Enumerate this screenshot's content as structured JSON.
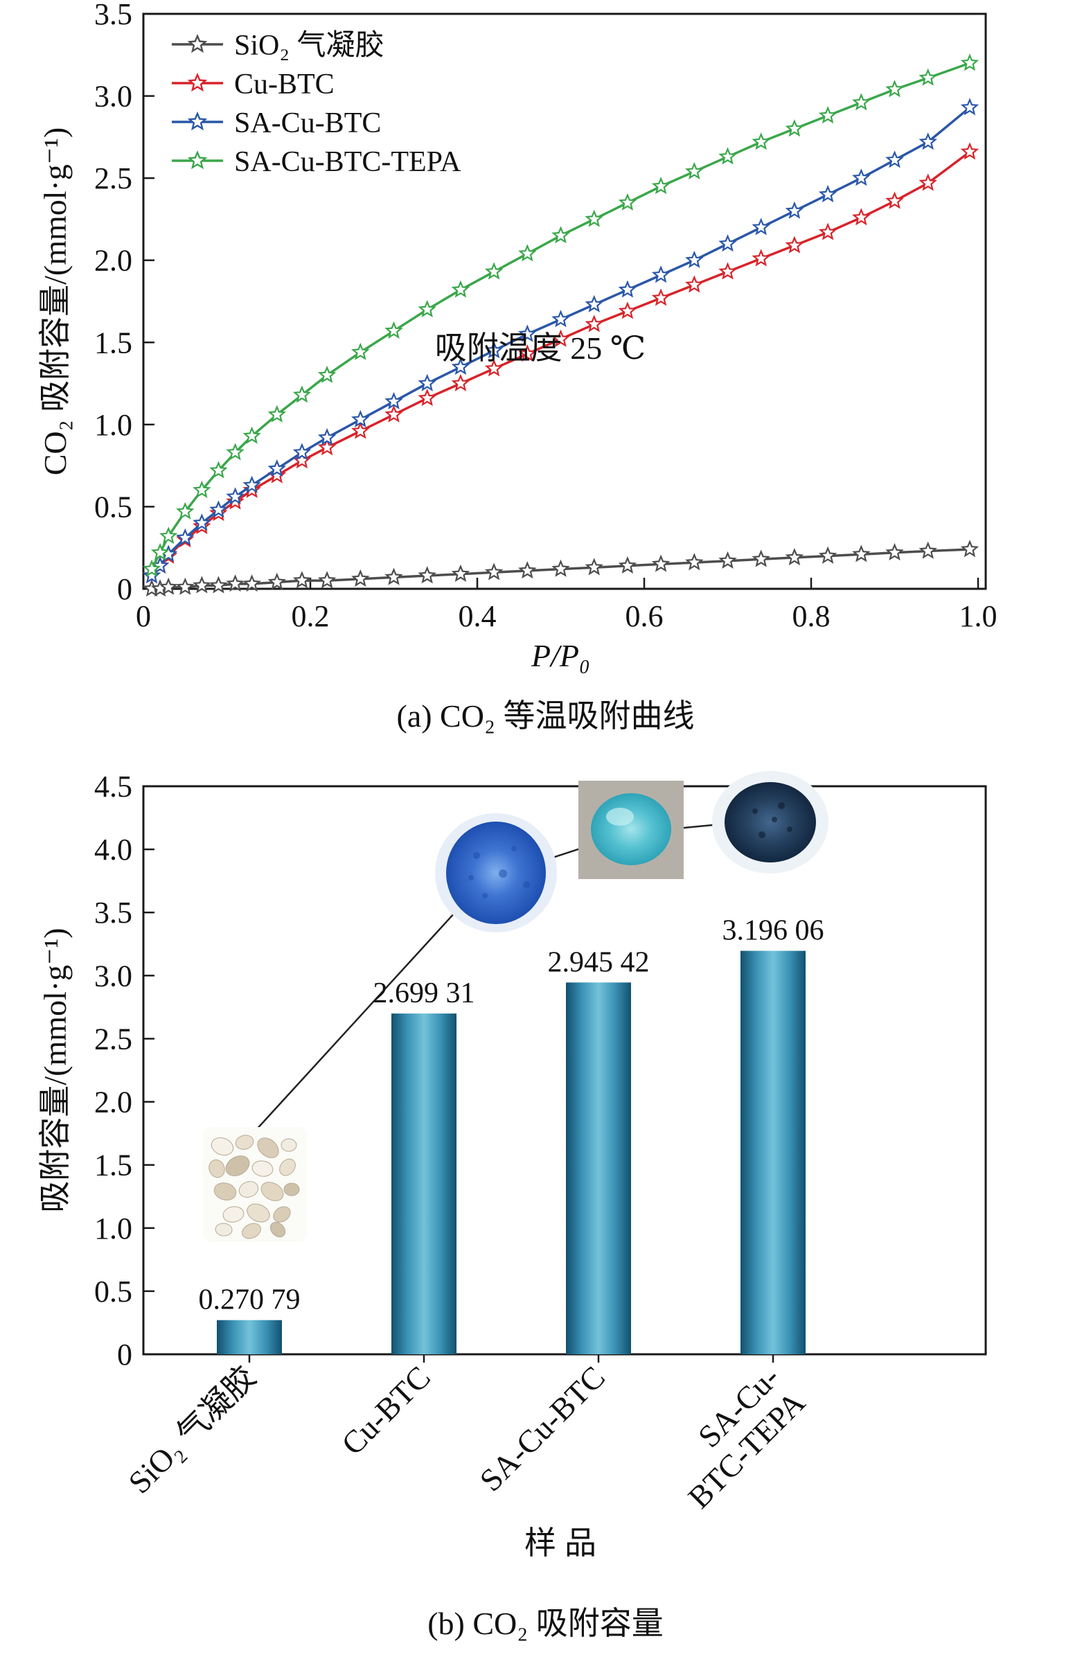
{
  "page": {
    "background": "#ffffff"
  },
  "chart_data": [
    {
      "id": "co2-isotherm",
      "type": "line",
      "caption": "(a) CO₂ 等温吸附曲线",
      "xlabel": "P/P₀",
      "ylabel": "CO₂ 吸附容量/(mmol·g⁻¹)",
      "annotation": "吸附温度 25 ℃",
      "xlim": [
        0,
        1.0
      ],
      "ylim": [
        0,
        3.5
      ],
      "xticks": [
        0,
        0.2,
        0.4,
        0.6,
        0.8,
        1.0
      ],
      "xtick_labels": [
        "0",
        "0.2",
        "0.4",
        "0.6",
        "0.8",
        "1.0"
      ],
      "yticks": [
        0,
        0.5,
        1.0,
        1.5,
        2.0,
        2.5,
        3.0,
        3.5
      ],
      "ytick_labels": [
        "0",
        "0.5",
        "1.0",
        "1.5",
        "2.0",
        "2.5",
        "3.0",
        "3.5"
      ],
      "marker": "open-star",
      "legend_position": "upper-left",
      "grid": false,
      "x": [
        0.01,
        0.02,
        0.03,
        0.05,
        0.07,
        0.09,
        0.11,
        0.13,
        0.16,
        0.19,
        0.22,
        0.26,
        0.3,
        0.34,
        0.38,
        0.42,
        0.46,
        0.5,
        0.54,
        0.58,
        0.62,
        0.66,
        0.7,
        0.74,
        0.78,
        0.82,
        0.86,
        0.9,
        0.94,
        0.99
      ],
      "series": [
        {
          "id": "sio2-aerogel",
          "name": "SiO₂ 气凝胶",
          "color": "#4d4d4d",
          "values": [
            0.0,
            0.0,
            0.01,
            0.01,
            0.02,
            0.02,
            0.03,
            0.03,
            0.04,
            0.05,
            0.05,
            0.06,
            0.07,
            0.08,
            0.09,
            0.1,
            0.11,
            0.12,
            0.13,
            0.14,
            0.15,
            0.16,
            0.17,
            0.18,
            0.19,
            0.2,
            0.21,
            0.22,
            0.23,
            0.24
          ]
        },
        {
          "id": "cu-btc",
          "name": "Cu-BTC",
          "color": "#d8232a",
          "values": [
            0.08,
            0.14,
            0.2,
            0.3,
            0.38,
            0.46,
            0.53,
            0.6,
            0.69,
            0.78,
            0.86,
            0.96,
            1.06,
            1.16,
            1.25,
            1.34,
            1.43,
            1.52,
            1.61,
            1.69,
            1.77,
            1.85,
            1.93,
            2.01,
            2.09,
            2.17,
            2.26,
            2.36,
            2.47,
            2.66
          ]
        },
        {
          "id": "sa-cu-btc",
          "name": "SA-Cu-BTC",
          "color": "#2a57a8",
          "values": [
            0.08,
            0.14,
            0.21,
            0.31,
            0.4,
            0.48,
            0.56,
            0.63,
            0.73,
            0.83,
            0.92,
            1.03,
            1.14,
            1.25,
            1.35,
            1.45,
            1.55,
            1.64,
            1.73,
            1.82,
            1.91,
            2.0,
            2.1,
            2.2,
            2.3,
            2.4,
            2.5,
            2.61,
            2.72,
            2.93
          ]
        },
        {
          "id": "sa-cu-btc-tepa",
          "name": "SA-Cu-BTC-TEPA",
          "color": "#3aa74a",
          "values": [
            0.12,
            0.22,
            0.32,
            0.47,
            0.6,
            0.72,
            0.83,
            0.93,
            1.06,
            1.18,
            1.3,
            1.44,
            1.57,
            1.7,
            1.82,
            1.93,
            2.04,
            2.15,
            2.25,
            2.35,
            2.45,
            2.54,
            2.63,
            2.72,
            2.8,
            2.88,
            2.96,
            3.04,
            3.11,
            3.2
          ]
        }
      ]
    },
    {
      "id": "co2-capacity",
      "type": "bar",
      "caption": "(b) CO₂ 吸附容量",
      "xlabel": "样品",
      "ylabel": "吸附容量/(mmol·g⁻¹)",
      "ylim": [
        0,
        4.5
      ],
      "yticks": [
        0,
        0.5,
        1.0,
        1.5,
        2.0,
        2.5,
        3.0,
        3.5,
        4.0,
        4.5
      ],
      "ytick_labels": [
        "0",
        "0.5",
        "1.0",
        "1.5",
        "2.0",
        "2.5",
        "3.0",
        "3.5",
        "4.0",
        "4.5"
      ],
      "categories": [
        "SiO₂ 气凝胶",
        "Cu-BTC",
        "SA-Cu-BTC",
        "SA-Cu-BTC-TEPA"
      ],
      "category_label_lines": [
        [
          "SiO₂ 气凝胶"
        ],
        [
          "Cu-BTC"
        ],
        [
          "SA-Cu-BTC"
        ],
        [
          "SA-Cu-",
          "BTC-TEPA"
        ]
      ],
      "values": [
        0.27079,
        2.69931,
        2.94542,
        3.19606
      ],
      "value_labels": [
        "0.270 79",
        "2.699 31",
        "2.945 42",
        "3.196 06"
      ],
      "bar_gradient": [
        "#12506e",
        "#3b93b6",
        "#73c2da",
        "#3b93b6",
        "#12506e"
      ],
      "grid": false
    }
  ]
}
